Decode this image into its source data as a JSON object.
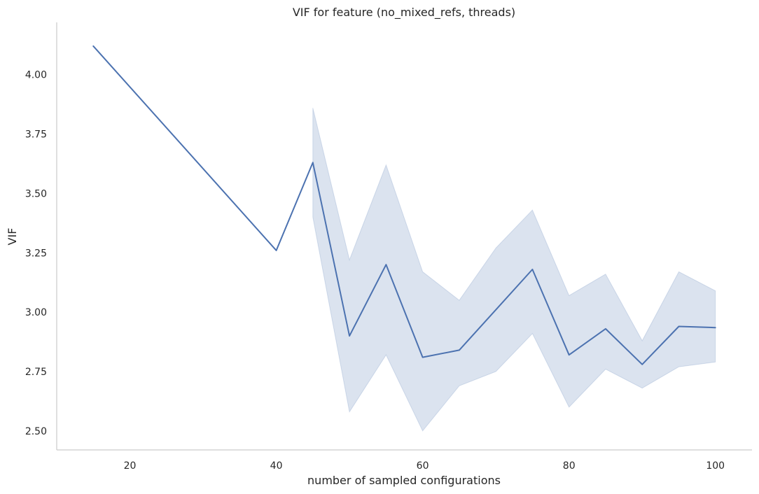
{
  "chart_data": {
    "type": "line",
    "title": "VIF for feature (no_mixed_refs, threads)",
    "xlabel": "number of sampled configurations",
    "ylabel": "VIF",
    "xlim": [
      10,
      105
    ],
    "ylim": [
      2.42,
      4.22
    ],
    "xticks": [
      20,
      40,
      60,
      80,
      100
    ],
    "yticks": [
      2.5,
      2.75,
      3.0,
      3.25,
      3.5,
      3.75,
      4.0
    ],
    "ytick_labels": [
      "2.50",
      "2.75",
      "3.00",
      "3.25",
      "3.50",
      "3.75",
      "4.00"
    ],
    "grid": false,
    "series": [
      {
        "color": "#4c72b0",
        "x": [
          15,
          40,
          45,
          50,
          55,
          60,
          65,
          70,
          75,
          80,
          85,
          90,
          95,
          100
        ],
        "y": [
          4.12,
          3.26,
          3.63,
          2.9,
          3.2,
          2.81,
          2.84,
          3.01,
          3.18,
          2.82,
          2.93,
          2.78,
          2.94,
          2.935
        ],
        "ci_x": [
          45,
          50,
          55,
          60,
          65,
          70,
          75,
          80,
          85,
          90,
          95,
          100
        ],
        "ci_lower": [
          3.4,
          2.58,
          2.82,
          2.5,
          2.69,
          2.75,
          2.91,
          2.6,
          2.76,
          2.68,
          2.77,
          2.79
        ],
        "ci_upper": [
          3.86,
          3.22,
          3.62,
          3.17,
          3.05,
          3.27,
          3.43,
          3.07,
          3.16,
          2.88,
          3.17,
          3.09
        ]
      }
    ]
  }
}
